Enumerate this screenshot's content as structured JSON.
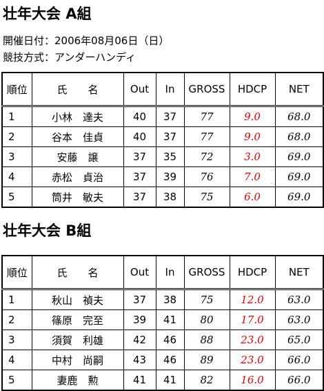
{
  "sections": [
    {
      "title": "壮年大会 A組",
      "info": [
        "開催日付：2006年08月06日（日）",
        "競技方式：アンダーハンディ"
      ],
      "table": {
        "header": [
          "順位",
          "氏　　名",
          "Out",
          "In",
          "GROSS",
          "HDCP",
          "NET"
        ],
        "rows": [
          [
            "1",
            "小林　達夫",
            "40",
            "37",
            "77",
            "9.0",
            "68.0"
          ],
          [
            "2",
            "谷本　佳貞",
            "40",
            "37",
            "77",
            "9.0",
            "68.0"
          ],
          [
            "3",
            "安藤　譲",
            "37",
            "35",
            "72",
            "3.0",
            "69.0"
          ],
          [
            "4",
            "赤松　貞治",
            "37",
            "39",
            "76",
            "7.0",
            "69.0"
          ],
          [
            "5",
            "筒井　敏夫",
            "37",
            "38",
            "75",
            "6.0",
            "69.0"
          ]
        ]
      }
    },
    {
      "title": "壮年大会 B組",
      "table": {
        "header": [
          "順位",
          "氏　　名",
          "Out",
          "In",
          "GROSS",
          "HDCP",
          "NET"
        ],
        "rows": [
          [
            "1",
            "秋山　禎夫",
            "37",
            "38",
            "75",
            "12.0",
            "63.0"
          ],
          [
            "2",
            "篠原　完至",
            "39",
            "41",
            "80",
            "17.0",
            "63.0"
          ],
          [
            "3",
            "須賀　利雄",
            "42",
            "46",
            "88",
            "23.0",
            "65.0"
          ],
          [
            "4",
            "中村　尚嗣",
            "43",
            "46",
            "89",
            "23.0",
            "66.0"
          ],
          [
            "5",
            "妻鹿　勲",
            "41",
            "41",
            "82",
            "16.0",
            "66.0"
          ]
        ]
      }
    }
  ]
}
